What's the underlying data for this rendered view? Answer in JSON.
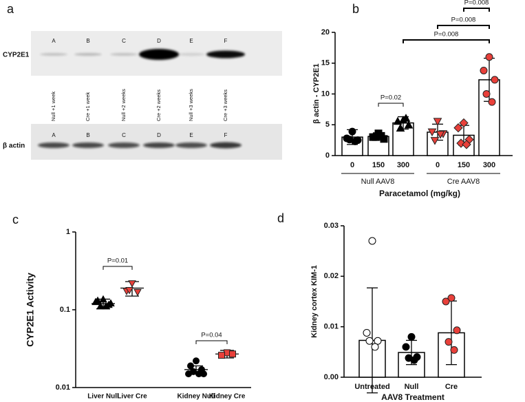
{
  "blot": {
    "panel": "a",
    "target": "CYP2E1",
    "control": "β actin",
    "top_lanes": [
      "A",
      "B",
      "C",
      "D",
      "E",
      "F"
    ],
    "bottom_lanes": [
      "A",
      "B",
      "C",
      "D",
      "E",
      "F"
    ],
    "lane_names": [
      "Null +1 week",
      "Cre +1 week",
      "Null +2 weeks",
      "Cre +2 weeks",
      "Null +3 weeks",
      "Cre +3 weeks"
    ]
  },
  "chart_data": [
    {
      "type": "bar",
      "panel": "b",
      "y_label": "β actin - CYP2E1",
      "x_label": "Paracetamol (mg/kg)",
      "categories": [
        "0",
        "150",
        "300",
        "0",
        "150",
        "300"
      ],
      "groups": [
        "Null AAV8",
        "Cre AAV8"
      ],
      "values": [
        3.0,
        3.1,
        5.3,
        3.8,
        3.3,
        12.3
      ],
      "errors": [
        1.2,
        0.6,
        1.0,
        1.3,
        1.6,
        3.5
      ],
      "points": [
        [
          3.9,
          2.8,
          2.5,
          2.6,
          2.3
        ],
        [
          3.6,
          3.0,
          2.7,
          3.0,
          3.2
        ],
        [
          5.7,
          5.5,
          4.9,
          4.4,
          6.0
        ],
        [
          5.6,
          3.9,
          3.6,
          2.5,
          3.5
        ],
        [
          5.3,
          4.5,
          2.6,
          2.0,
          1.8
        ],
        [
          16.0,
          13.8,
          12.3,
          10.0,
          8.7
        ]
      ],
      "markers": [
        "circle",
        "square",
        "triangle",
        "triangle-down",
        "diamond",
        "circle"
      ],
      "colors": [
        "#000000",
        "#000000",
        "#000000",
        "#e8403a",
        "#e8403a",
        "#e8403a"
      ],
      "ylim": [
        0,
        20
      ],
      "yticks": [
        0,
        5,
        10,
        15,
        20
      ],
      "annotations": [
        "P=0.02",
        "P=0.008",
        "P=0.008",
        "P=0.008"
      ]
    },
    {
      "type": "dot",
      "panel": "c",
      "y_label": "CYP2E1 Activity",
      "log_y": true,
      "categories": [
        "Liver  Null",
        "Liver Cre",
        "Kidney Null",
        "Kidney Cre"
      ],
      "values": [
        0.12,
        0.19,
        0.017,
        0.027
      ],
      "errors": [
        0.017,
        0.04,
        0.002,
        0.003
      ],
      "points": [
        [
          0.135,
          0.13,
          0.115,
          0.11,
          0.11,
          0.125,
          0.12
        ],
        [
          0.22,
          0.175,
          0.17,
          0.18
        ],
        [
          0.022,
          0.019,
          0.017,
          0.016,
          0.015,
          0.015,
          0.015
        ],
        [
          0.028,
          0.026,
          0.027
        ]
      ],
      "markers": [
        "triangle",
        "triangle-down",
        "circle",
        "square"
      ],
      "colors": [
        "#000000",
        "#e8403a",
        "#000000",
        "#e8403a"
      ],
      "ylim": [
        0.01,
        1
      ],
      "yticks": [
        0.01,
        0.1,
        1
      ],
      "annotations": [
        "P=0.01",
        "P=0.04"
      ]
    },
    {
      "type": "bar",
      "panel": "d",
      "y_label": "Kidney cortex KIM-1",
      "x_label": "AAV8 Treatment",
      "categories": [
        "Untreated",
        "Null",
        "Cre"
      ],
      "values": [
        0.0073,
        0.0049,
        0.0088
      ],
      "errors": [
        0.0104,
        0.0024,
        0.0063
      ],
      "points": [
        [
          0.027,
          0.0088,
          0.0072,
          0.0072,
          0.006
        ],
        [
          0.008,
          0.006,
          0.004,
          0.0038,
          0.0034
        ],
        [
          0.0157,
          0.015,
          0.0093,
          0.007,
          0.0054
        ]
      ],
      "markers": [
        "circle",
        "circle",
        "circle"
      ],
      "colors": [
        "#ffffff",
        "#000000",
        "#e8403a"
      ],
      "ylim": [
        0,
        0.03
      ],
      "yticks": [
        {
          "value": 0,
          "label": "0.00"
        },
        0.01,
        0.02,
        0.03
      ]
    }
  ]
}
